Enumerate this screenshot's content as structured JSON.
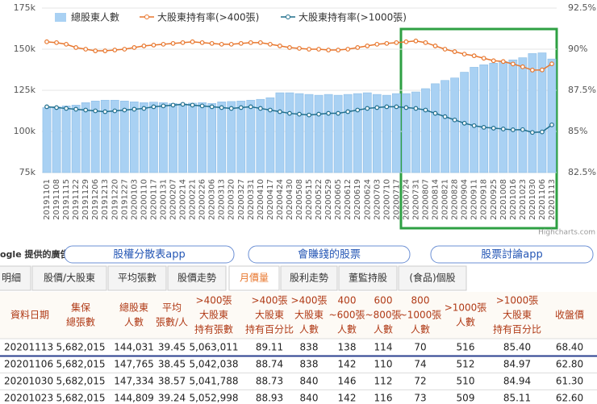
{
  "chart_data": {
    "type": "bar",
    "legend": "top",
    "categories": [
      "20191101",
      "20191108",
      "20191115",
      "20191122",
      "20191129",
      "20191206",
      "20191213",
      "20191220",
      "20191227",
      "20200103",
      "20200110",
      "20200117",
      "20200131",
      "20200207",
      "20200214",
      "20200221",
      "20200226",
      "20200306",
      "20200313",
      "20200320",
      "20200327",
      "20200331",
      "20200410",
      "20200417",
      "20200424",
      "20200430",
      "20200508",
      "20200515",
      "20200522",
      "20200529",
      "20200605",
      "20200612",
      "20200619",
      "20200624",
      "20200703",
      "20200710",
      "20200717",
      "20200724",
      "20200731",
      "20200807",
      "20200814",
      "20200821",
      "20200828",
      "20200904",
      "20200911",
      "20200918",
      "20200925",
      "20201008",
      "20201016",
      "20201023",
      "20201030",
      "20201106",
      "20201113"
    ],
    "ylim": [
      75000,
      175000
    ],
    "yticks": [
      {
        "value": 75000,
        "label": "75k"
      },
      {
        "value": 100000,
        "label": "100k"
      },
      {
        "value": 125000,
        "label": "125k"
      },
      {
        "value": 150000,
        "label": "150k"
      },
      {
        "value": 175000,
        "label": "175k"
      }
    ],
    "y2lim": [
      82.5,
      92.5
    ],
    "y2ticks": [
      {
        "value": 82.5,
        "label": "82.5%"
      },
      {
        "value": 85,
        "label": "85%"
      },
      {
        "value": 87.5,
        "label": "87.5%"
      },
      {
        "value": 90,
        "label": "90%"
      },
      {
        "value": 92.5,
        "label": "92.5%"
      }
    ],
    "series": [
      {
        "name": "總股東人數",
        "type": "bar",
        "color": "#a9d1f3",
        "values": [
          114500,
          115000,
          115500,
          116000,
          117500,
          118500,
          119000,
          119000,
          118500,
          118000,
          117500,
          117800,
          117500,
          117000,
          116800,
          117200,
          117500,
          117000,
          118000,
          118200,
          118500,
          119000,
          119500,
          120500,
          123500,
          123500,
          123000,
          122500,
          122000,
          122500,
          122000,
          122500,
          123000,
          123500,
          122500,
          122000,
          123000,
          123000,
          124000,
          126000,
          129000,
          131000,
          132500,
          136000,
          139000,
          140500,
          141500,
          142500,
          143500,
          144809,
          147334,
          147765,
          144031
        ]
      },
      {
        "name": "大股東持有率(>400張)",
        "type": "line",
        "axis": "y2",
        "color": "#e8772e",
        "values": [
          90.45,
          90.4,
          90.3,
          90.1,
          90.0,
          89.9,
          89.9,
          89.95,
          90.0,
          90.1,
          90.2,
          90.25,
          90.3,
          90.35,
          90.4,
          90.45,
          90.4,
          90.35,
          90.3,
          90.3,
          90.35,
          90.4,
          90.4,
          90.3,
          90.2,
          90.1,
          90.05,
          90.0,
          90.0,
          89.95,
          89.95,
          90.0,
          90.1,
          90.2,
          90.3,
          90.35,
          90.4,
          90.45,
          90.5,
          90.4,
          90.2,
          90.0,
          89.85,
          89.7,
          89.6,
          89.45,
          89.3,
          89.25,
          89.1,
          88.93,
          88.73,
          88.74,
          89.11
        ]
      },
      {
        "name": "大股東持有率(>1000張)",
        "type": "line",
        "axis": "y2",
        "color": "#1f6e8c",
        "values": [
          86.5,
          86.45,
          86.4,
          86.35,
          86.3,
          86.25,
          86.2,
          86.25,
          86.3,
          86.35,
          86.4,
          86.5,
          86.55,
          86.6,
          86.65,
          86.6,
          86.55,
          86.5,
          86.45,
          86.4,
          86.45,
          86.5,
          86.4,
          86.3,
          86.2,
          86.1,
          86.05,
          86.0,
          86.05,
          86.1,
          86.1,
          86.2,
          86.3,
          86.4,
          86.45,
          86.5,
          86.5,
          86.45,
          86.4,
          86.3,
          86.1,
          85.9,
          85.7,
          85.5,
          85.35,
          85.25,
          85.2,
          85.15,
          85.1,
          85.11,
          84.94,
          84.97,
          85.4
        ]
      }
    ],
    "credit": "Highcharts.com"
  },
  "ad": {
    "label": "ogle 提供的廣告",
    "buttons": [
      "股權分散表app",
      "會賺錢的股票",
      "股票討論app"
    ]
  },
  "tabs": {
    "items": [
      "明細",
      "股價/大股東",
      "平均張數",
      "股價走勢",
      "月價量",
      "股利走勢",
      "董監持股",
      "(食品)個股"
    ],
    "active": 4
  },
  "table": {
    "header": [
      [
        "資料日期"
      ],
      [
        "集保",
        "總張數"
      ],
      [
        "總股東",
        "人數"
      ],
      [
        "平均",
        "張數/人"
      ],
      [
        ">400張",
        "大股東",
        "持有張數"
      ],
      [
        ">400張",
        "大股東",
        "持有百分比"
      ],
      [
        ">400張",
        "大股東",
        "人數"
      ],
      [
        "400",
        "~600張",
        "人數"
      ],
      [
        "600",
        "~800張",
        "人數"
      ],
      [
        "800",
        "~1000張",
        "人數"
      ],
      [
        ">1000張",
        "人數"
      ],
      [
        ">1000張",
        "大股東",
        "持有百分比"
      ],
      [
        "收盤價"
      ]
    ],
    "rows": [
      [
        "20201113",
        "5,682,015",
        "144,031",
        "39.45",
        "5,063,011",
        "89.11",
        "838",
        "138",
        "114",
        "70",
        "516",
        "85.40",
        "68.40"
      ],
      [
        "20201106",
        "5,682,015",
        "147,765",
        "38.45",
        "5,042,038",
        "88.74",
        "838",
        "142",
        "110",
        "74",
        "512",
        "84.97",
        "62.80"
      ],
      [
        "20201030",
        "5,682,015",
        "147,334",
        "38.57",
        "5,041,788",
        "88.73",
        "840",
        "146",
        "112",
        "72",
        "510",
        "84.94",
        "61.30"
      ],
      [
        "20201023",
        "5,682,015",
        "144,809",
        "39.24",
        "5,052,998",
        "88.93",
        "840",
        "142",
        "116",
        "73",
        "509",
        "85.11",
        "62.60"
      ]
    ]
  }
}
